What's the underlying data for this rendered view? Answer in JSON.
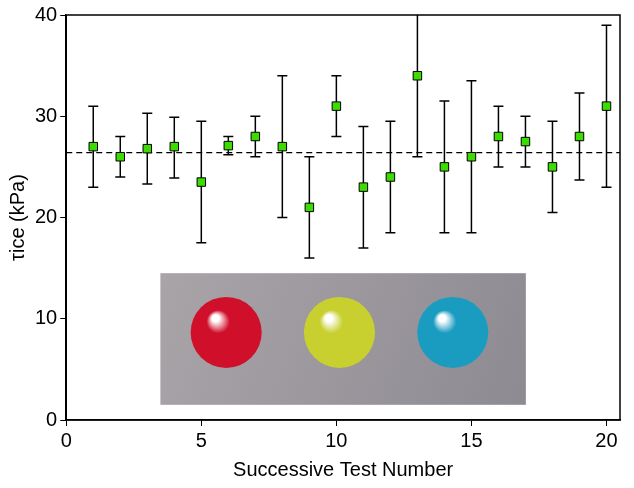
{
  "chart_data": {
    "type": "scatter",
    "x_label": "Successive Test Number",
    "y_label": "τice (kPa)",
    "x": [
      1,
      2,
      3,
      4,
      5,
      6,
      7,
      8,
      9,
      10,
      11,
      12,
      13,
      14,
      15,
      16,
      17,
      18,
      19,
      20
    ],
    "values": [
      27,
      26,
      26.8,
      27,
      23.5,
      27.1,
      28,
      27,
      21,
      31,
      23,
      24,
      34,
      25,
      26,
      28,
      27.5,
      25,
      28,
      31
    ],
    "lower": [
      23,
      24,
      23.3,
      23.9,
      17.5,
      26.2,
      26,
      20,
      16,
      28,
      17,
      18.5,
      26,
      18.5,
      18.5,
      25,
      25,
      20.5,
      23.7,
      23
    ],
    "upper": [
      31,
      28,
      30.3,
      29.9,
      29.5,
      28,
      30,
      34,
      26,
      34,
      29,
      29.5,
      41,
      31.5,
      33.5,
      31,
      30,
      29.5,
      32.3,
      39
    ],
    "mean_line": 26.4,
    "color": "#3ddc00",
    "marker": "square",
    "xlim": [
      0,
      20.5
    ],
    "xticks": [
      0,
      5,
      10,
      15,
      20
    ],
    "ylim": [
      0,
      40
    ],
    "yticks": [
      0,
      10,
      20,
      30,
      40
    ],
    "grid": false
  }
}
